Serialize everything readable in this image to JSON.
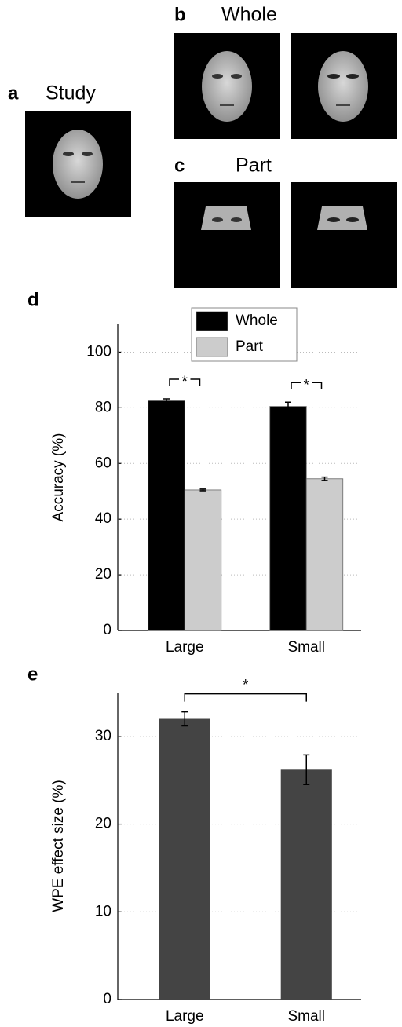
{
  "figure": {
    "panels": [
      {
        "letter": "a",
        "title": "Study"
      },
      {
        "letter": "b",
        "title": "Whole"
      },
      {
        "letter": "c",
        "title": "Part"
      },
      {
        "letter": "d"
      },
      {
        "letter": "e"
      }
    ]
  },
  "chart_data": [
    {
      "type": "bar",
      "y_label": "Accuracy (%)",
      "categories": [
        "Large",
        "Small"
      ],
      "series": [
        {
          "name": "Whole",
          "color": "#000000",
          "values": [
            82.5,
            80.5
          ],
          "errors": [
            0.7,
            1.5
          ]
        },
        {
          "name": "Part",
          "color": "#cccccc",
          "values": [
            50.5,
            54.5
          ],
          "errors": [
            0.3,
            0.6
          ]
        }
      ],
      "ylim": [
        0,
        110
      ],
      "yticks": [
        0,
        20,
        40,
        60,
        80,
        100
      ],
      "grid": true,
      "legend": "top",
      "annotations": [
        "*",
        "*"
      ]
    },
    {
      "type": "bar",
      "y_label": "WPE effect size (%)",
      "categories": [
        "Large",
        "Small"
      ],
      "values": [
        32,
        26.2
      ],
      "errors": [
        0.8,
        1.7
      ],
      "color": "#444444",
      "ylim": [
        0,
        35
      ],
      "yticks": [
        0,
        10,
        20,
        30
      ],
      "grid": true,
      "annotations": [
        "*"
      ]
    }
  ]
}
